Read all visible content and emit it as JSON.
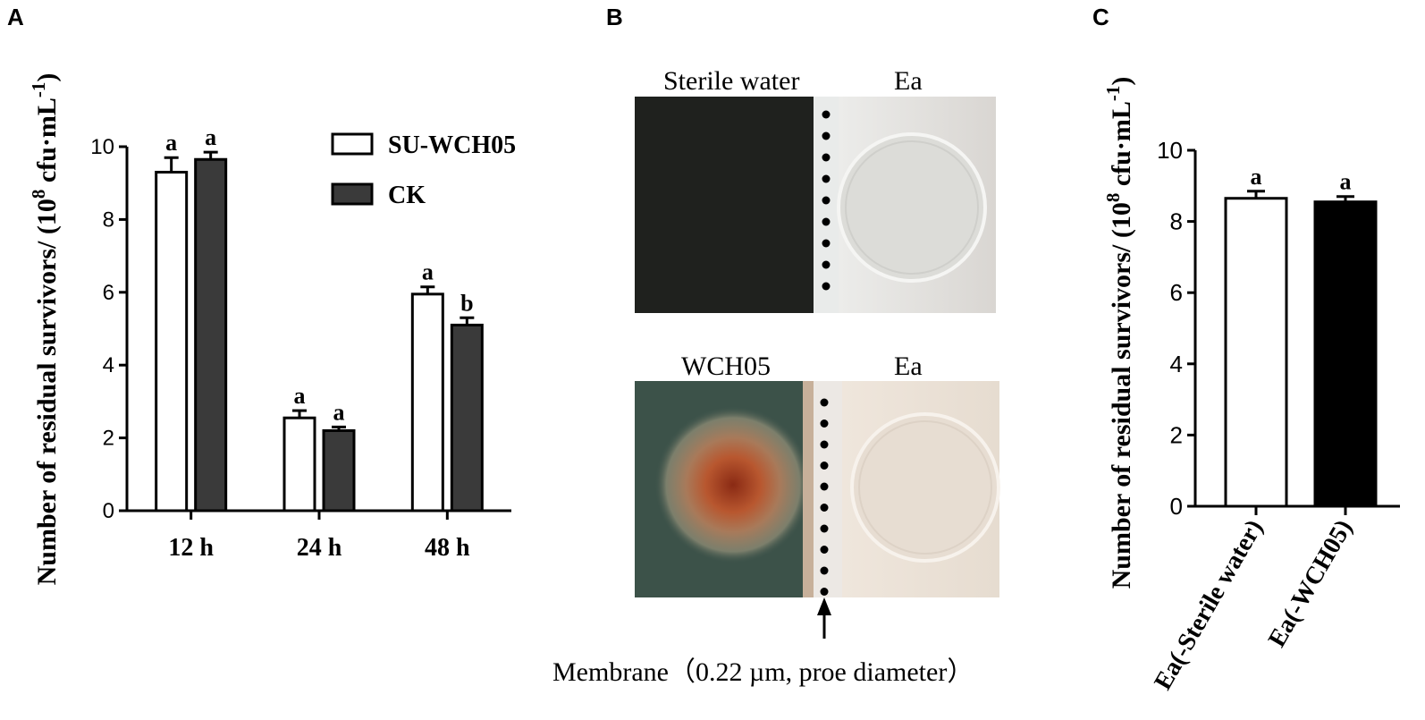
{
  "panels": {
    "a_letter": "A",
    "b_letter": "B",
    "c_letter": "C"
  },
  "chart_data": [
    {
      "type": "bar",
      "panel": "A",
      "categories": [
        "12 h",
        "24 h",
        "48 h"
      ],
      "ylabel": "Number of residual survivors/ (10^8 cfu·mL^-1)",
      "ylim": [
        0,
        10
      ],
      "yticks": [
        0,
        2,
        4,
        6,
        8,
        10
      ],
      "series": [
        {
          "name": "SU-WCH05",
          "color": "#ffffff",
          "values": [
            9.3,
            2.55,
            5.95
          ],
          "errors": [
            0.4,
            0.2,
            0.2
          ],
          "letters": [
            "a",
            "a",
            "a"
          ]
        },
        {
          "name": "CK",
          "color": "#3a3a3a",
          "values": [
            9.65,
            2.2,
            5.1
          ],
          "errors": [
            0.2,
            0.1,
            0.2
          ],
          "letters": [
            "a",
            "a",
            "b"
          ]
        }
      ],
      "legend": "top-right",
      "grid": false
    },
    {
      "type": "bar",
      "panel": "C",
      "categories": [
        "Ea(-Sterile water)",
        "Ea(-WCH05)"
      ],
      "ylabel": "Number of residual survivors/ (10^8 cfu·mL^-1)",
      "ylim": [
        0,
        10
      ],
      "yticks": [
        0,
        2,
        4,
        6,
        8,
        10
      ],
      "series": [
        {
          "values": [
            8.65,
            8.55
          ],
          "errors": [
            0.2,
            0.15
          ],
          "letters": [
            "a",
            "a"
          ],
          "colors": [
            "#ffffff",
            "#000000"
          ]
        }
      ],
      "grid": false
    }
  ],
  "photos": {
    "top_left_label": "Sterile water",
    "top_right_label": "Ea",
    "bottom_left_label": "WCH05",
    "bottom_right_label": "Ea",
    "membrane_label": "Membrane（0.22 µm, proe diameter）"
  }
}
